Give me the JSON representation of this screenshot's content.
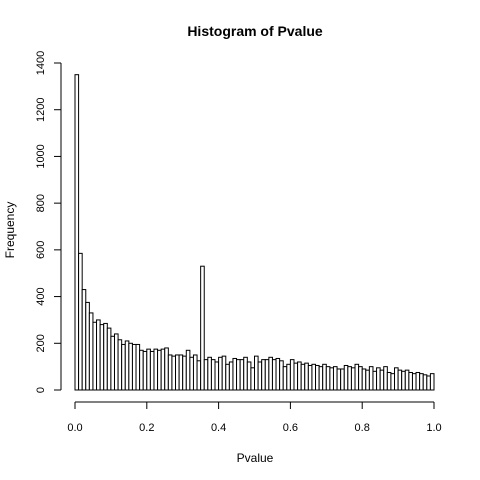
{
  "chart_data": {
    "type": "bar",
    "title": "Histogram of Pvalue",
    "xlabel": "Pvalue",
    "ylabel": "Frequency",
    "xlim": [
      0,
      1
    ],
    "ylim": [
      0,
      1400
    ],
    "x_ticks": [
      "0.0",
      "0.2",
      "0.4",
      "0.6",
      "0.8",
      "1.0"
    ],
    "y_ticks": [
      "0",
      "200",
      "400",
      "600",
      "800",
      "1000",
      "1200",
      "1400"
    ],
    "bin_width": 0.01,
    "values": [
      1350,
      585,
      430,
      375,
      330,
      290,
      300,
      280,
      285,
      265,
      230,
      240,
      215,
      195,
      210,
      200,
      195,
      195,
      170,
      165,
      175,
      165,
      175,
      170,
      175,
      180,
      150,
      145,
      150,
      150,
      145,
      170,
      140,
      150,
      125,
      530,
      130,
      140,
      130,
      120,
      140,
      145,
      110,
      120,
      135,
      130,
      130,
      140,
      120,
      95,
      145,
      120,
      130,
      130,
      140,
      130,
      135,
      125,
      100,
      110,
      130,
      115,
      120,
      110,
      115,
      105,
      110,
      105,
      100,
      110,
      100,
      95,
      100,
      90,
      90,
      105,
      100,
      95,
      110,
      100,
      90,
      85,
      100,
      80,
      95,
      85,
      100,
      75,
      70,
      95,
      85,
      80,
      85,
      75,
      70,
      75,
      70,
      65,
      60,
      70
    ]
  }
}
